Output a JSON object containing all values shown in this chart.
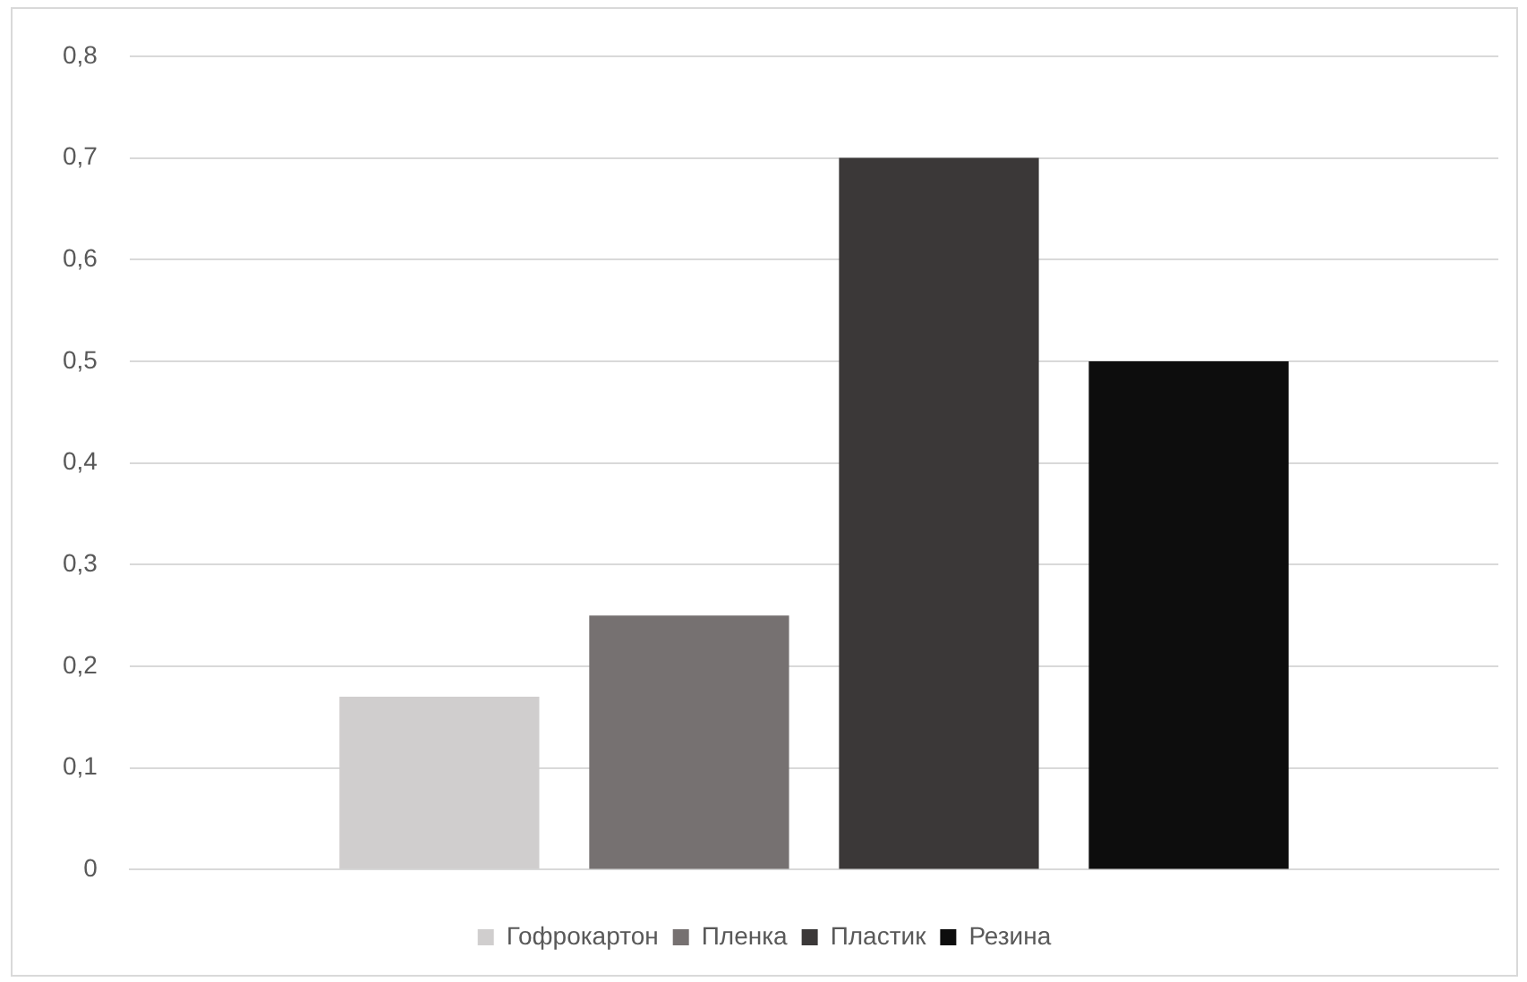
{
  "chart_data": {
    "type": "bar",
    "categories": [
      null
    ],
    "series": [
      {
        "name": "Гофрокартон",
        "color": "#d0cece",
        "values": [
          0.17
        ]
      },
      {
        "name": "Пленка",
        "color": "#767171",
        "values": [
          0.25
        ]
      },
      {
        "name": "Пластик",
        "color": "#3b3838",
        "values": [
          0.7
        ]
      },
      {
        "name": "Резина",
        "color": "#0d0d0d",
        "values": [
          0.5
        ]
      }
    ],
    "ylim": [
      0,
      0.8
    ],
    "yticks": [
      {
        "value": 0,
        "label": "0"
      },
      {
        "value": 0.1,
        "label": "0,1"
      },
      {
        "value": 0.2,
        "label": "0,2"
      },
      {
        "value": 0.3,
        "label": "0,3"
      },
      {
        "value": 0.4,
        "label": "0,4"
      },
      {
        "value": 0.5,
        "label": "0,5"
      },
      {
        "value": 0.6,
        "label": "0,6"
      },
      {
        "value": 0.7,
        "label": "0,7"
      },
      {
        "value": 0.8,
        "label": "0,8"
      }
    ],
    "grid": "y",
    "legend": "bottom"
  }
}
